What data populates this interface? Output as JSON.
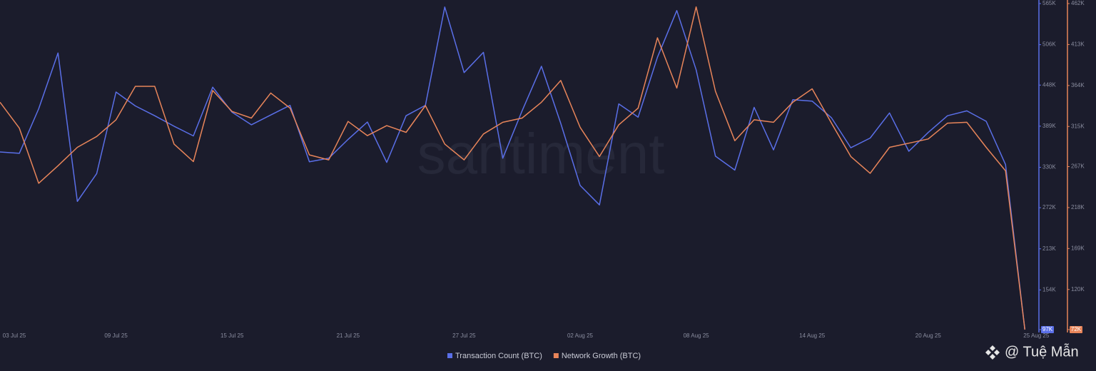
{
  "chart_data": {
    "type": "line",
    "watermark": "santiment",
    "categories": [
      "03 Jul 25",
      null,
      null,
      null,
      null,
      null,
      "09 Jul 25",
      null,
      null,
      null,
      null,
      null,
      "15 Jul 25",
      null,
      null,
      null,
      null,
      null,
      "21 Jul 25",
      null,
      null,
      null,
      null,
      null,
      "27 Jul 25",
      null,
      null,
      null,
      null,
      null,
      "02 Aug 25",
      null,
      null,
      null,
      null,
      null,
      "08 Aug 25",
      null,
      null,
      null,
      null,
      null,
      "14 Aug 25",
      null,
      null,
      null,
      null,
      null,
      "20 Aug 25",
      null,
      null,
      null,
      null,
      "25 Aug 25"
    ],
    "series": [
      {
        "name": "Transaction Count (BTC)",
        "color": "#5a6fe8",
        "axis": "y",
        "values": [
          352000,
          350000,
          414000,
          494000,
          281000,
          321000,
          438000,
          418000,
          404000,
          389000,
          375000,
          445000,
          409000,
          391000,
          405000,
          419000,
          338000,
          343000,
          370000,
          395000,
          337000,
          404000,
          419000,
          560000,
          466000,
          495000,
          343000,
          411000,
          475000,
          393000,
          304000,
          276000,
          421000,
          402000,
          488000,
          555000,
          470000,
          346000,
          326000,
          416000,
          355000,
          427000,
          425000,
          401000,
          358000,
          372000,
          408000,
          353000,
          380000,
          404000,
          411000,
          396000,
          334000,
          97000
        ]
      },
      {
        "name": "Network Growth (BTC)",
        "color": "#e8855a",
        "axis": "y2",
        "values": [
          344000,
          313000,
          247000,
          268000,
          290000,
          303000,
          323000,
          363000,
          363000,
          294000,
          273000,
          358000,
          333000,
          325000,
          355000,
          337000,
          281000,
          275000,
          321000,
          304000,
          316000,
          308000,
          340000,
          294000,
          275000,
          306000,
          320000,
          325000,
          344000,
          370000,
          314000,
          279000,
          317000,
          337000,
          421000,
          361000,
          458000,
          357000,
          298000,
          323000,
          320000,
          344000,
          360000,
          319000,
          279000,
          259000,
          290000,
          295000,
          300000,
          319000,
          320000,
          290000,
          262000,
          72000
        ]
      }
    ],
    "ylim": [
      97000,
      565000
    ],
    "yticks": [
      {
        "value": 97000,
        "label": "97K"
      },
      {
        "value": 154000,
        "label": "154K"
      },
      {
        "value": 213000,
        "label": "213K"
      },
      {
        "value": 272000,
        "label": "272K"
      },
      {
        "value": 330000,
        "label": "330K"
      },
      {
        "value": 389000,
        "label": "389K"
      },
      {
        "value": 448000,
        "label": "448K"
      },
      {
        "value": 506000,
        "label": "506K"
      },
      {
        "value": 565000,
        "label": "565K"
      }
    ],
    "y2lim": [
      72000,
      462000
    ],
    "y2ticks": [
      {
        "value": 72000,
        "label": "72K"
      },
      {
        "value": 120000,
        "label": "120K"
      },
      {
        "value": 169000,
        "label": "169K"
      },
      {
        "value": 218000,
        "label": "218K"
      },
      {
        "value": 267000,
        "label": "267K"
      },
      {
        "value": 315000,
        "label": "315K"
      },
      {
        "value": 364000,
        "label": "364K"
      },
      {
        "value": 413000,
        "label": "413K"
      },
      {
        "value": 462000,
        "label": "462K"
      }
    ],
    "credit": "@ Tuệ Mẫn"
  }
}
